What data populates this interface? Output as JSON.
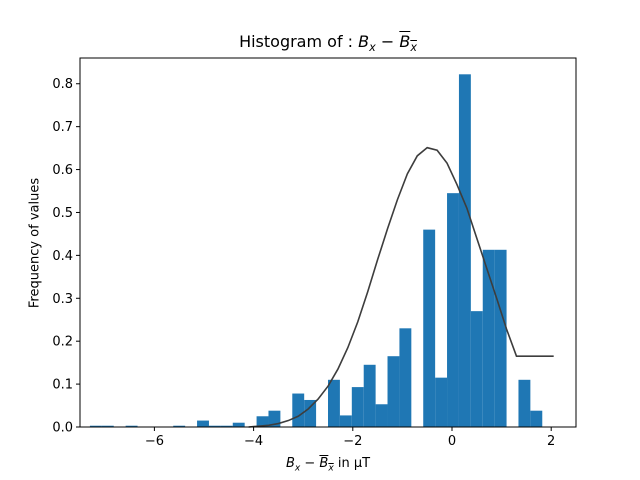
{
  "chart_data": {
    "type": "bar",
    "title": {
      "prefix": "Histogram of : ",
      "var": "B",
      "sub": "x",
      "minus": " − ",
      "bar_var": "B",
      "bar_sub": "x"
    },
    "xlabel": {
      "var": "B",
      "sub": "x",
      "minus": " − ",
      "bar_var": "B",
      "bar_sub": "x",
      "suffix": " in μT"
    },
    "ylabel": "Frequency of values",
    "xlim": [
      -7.5,
      2.5
    ],
    "ylim": [
      0,
      0.86
    ],
    "xticks": [
      -6,
      -4,
      -2,
      0,
      2
    ],
    "yticks": [
      0.0,
      0.1,
      0.2,
      0.3,
      0.4,
      0.5,
      0.6,
      0.7,
      0.8
    ],
    "xtick_labels": [
      "−6",
      "−4",
      "−2",
      "0",
      "2"
    ],
    "ytick_labels": [
      "0.0",
      "0.1",
      "0.2",
      "0.3",
      "0.4",
      "0.5",
      "0.6",
      "0.7",
      "0.8"
    ],
    "bar_color": "#1f77b4",
    "curve_color": "#3d3d3d",
    "grid": false,
    "histogram": {
      "bin_edges": [
        -7.3,
        -7.06,
        -6.82,
        -6.58,
        -6.34,
        -6.1,
        -5.86,
        -5.62,
        -5.38,
        -5.14,
        -4.9,
        -4.66,
        -4.42,
        -4.18,
        -3.94,
        -3.7,
        -3.46,
        -3.22,
        -2.98,
        -2.74,
        -2.5,
        -2.26,
        -2.02,
        -1.78,
        -1.54,
        -1.3,
        -1.06,
        -0.82,
        -0.58,
        -0.34,
        -0.1,
        0.14,
        0.38,
        0.62,
        0.86,
        1.1,
        1.34,
        1.58,
        1.82,
        2.06
      ],
      "frequencies": [
        0.003,
        0.003,
        0.0,
        0.003,
        0.0,
        0.0,
        0.0,
        0.003,
        0.0,
        0.015,
        0.003,
        0.003,
        0.01,
        0.0,
        0.025,
        0.038,
        0.0,
        0.078,
        0.063,
        0.0,
        0.11,
        0.027,
        0.093,
        0.145,
        0.053,
        0.165,
        0.23,
        0.0,
        0.46,
        0.115,
        0.545,
        0.822,
        0.27,
        0.413,
        0.413,
        0.0,
        0.11,
        0.038,
        0.0
      ]
    },
    "fit_curve": {
      "x": [
        -4.1,
        -3.9,
        -3.7,
        -3.5,
        -3.3,
        -3.1,
        -2.9,
        -2.7,
        -2.5,
        -2.3,
        -2.1,
        -1.9,
        -1.7,
        -1.5,
        -1.3,
        -1.1,
        -0.9,
        -0.7,
        -0.5,
        -0.3,
        -0.1,
        0.1,
        0.3,
        0.5,
        0.7,
        0.9,
        1.1,
        1.3,
        1.5,
        1.7,
        1.9,
        2.05
      ],
      "y": [
        0.0,
        0.002,
        0.004,
        0.008,
        0.015,
        0.025,
        0.042,
        0.065,
        0.095,
        0.135,
        0.185,
        0.245,
        0.315,
        0.39,
        0.462,
        0.53,
        0.59,
        0.632,
        0.651,
        0.645,
        0.615,
        0.565,
        0.51,
        0.44,
        0.37,
        0.3,
        0.228,
        0.165,
        0.165,
        0.165,
        0.165,
        0.165
      ]
    }
  }
}
